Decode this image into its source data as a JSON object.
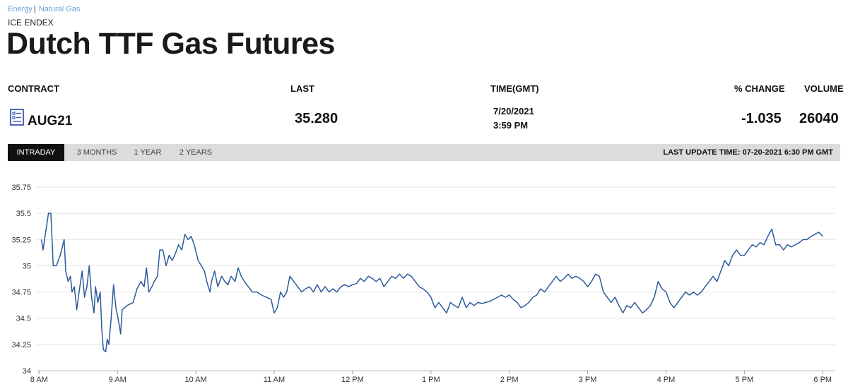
{
  "breadcrumb": {
    "item1": "Energy",
    "separator": "|",
    "item2": "Natural Gas"
  },
  "exchange": "ICE ENDEX",
  "title": "Dutch TTF Gas Futures",
  "table": {
    "headers": {
      "contract": "CONTRACT",
      "last": "LAST",
      "time": "TIME(GMT)",
      "change": "% CHANGE",
      "volume": "VOLUME"
    },
    "row": {
      "contract": "AUG21",
      "last": "35.280",
      "date": "7/20/2021",
      "time": "3:59 PM",
      "change": "-1.035",
      "volume": "26040"
    }
  },
  "tabs": [
    {
      "label": "INTRADAY",
      "active": true
    },
    {
      "label": "3 MONTHS",
      "active": false
    },
    {
      "label": "1 YEAR",
      "active": false
    },
    {
      "label": "2 YEARS",
      "active": false
    }
  ],
  "last_update": "LAST UPDATE TIME: 07-20-2021 6:30 PM GMT",
  "colors": {
    "line": "#2c5a9c",
    "link": "#6aa0d6",
    "icon": "#3a57b5",
    "tabbar": "#dcdcdc",
    "active_tab": "#111111"
  },
  "chart_data": {
    "type": "line",
    "title": "",
    "xlabel": "",
    "ylabel": "",
    "x_unit": "hours GMT",
    "xlim": [
      7.97,
      18.16
    ],
    "ylim": [
      34,
      35.75
    ],
    "yticks": [
      34,
      34.25,
      34.5,
      34.75,
      35,
      35.25,
      35.5,
      35.75
    ],
    "xticks": [
      {
        "value": 8,
        "label": "8 AM"
      },
      {
        "value": 9,
        "label": "9 AM"
      },
      {
        "value": 10,
        "label": "10 AM"
      },
      {
        "value": 11,
        "label": "11 AM"
      },
      {
        "value": 12,
        "label": "12 PM"
      },
      {
        "value": 13,
        "label": "1 PM"
      },
      {
        "value": 14,
        "label": "2 PM"
      },
      {
        "value": 15,
        "label": "3 PM"
      },
      {
        "value": 16,
        "label": "4 PM"
      },
      {
        "value": 17,
        "label": "5 PM"
      },
      {
        "value": 18,
        "label": "6 PM"
      }
    ],
    "grid": true,
    "series": [
      {
        "points": [
          [
            8.03,
            35.25
          ],
          [
            8.05,
            35.15
          ],
          [
            8.08,
            35.3
          ],
          [
            8.12,
            35.5
          ],
          [
            8.15,
            35.5
          ],
          [
            8.18,
            35.0
          ],
          [
            8.22,
            35.0
          ],
          [
            8.27,
            35.1
          ],
          [
            8.32,
            35.25
          ],
          [
            8.34,
            34.95
          ],
          [
            8.37,
            34.85
          ],
          [
            8.4,
            34.9
          ],
          [
            8.42,
            34.75
          ],
          [
            8.45,
            34.8
          ],
          [
            8.48,
            34.58
          ],
          [
            8.51,
            34.75
          ],
          [
            8.55,
            34.95
          ],
          [
            8.58,
            34.7
          ],
          [
            8.61,
            34.8
          ],
          [
            8.64,
            35.0
          ],
          [
            8.67,
            34.7
          ],
          [
            8.7,
            34.55
          ],
          [
            8.72,
            34.8
          ],
          [
            8.75,
            34.65
          ],
          [
            8.78,
            34.75
          ],
          [
            8.8,
            34.4
          ],
          [
            8.82,
            34.2
          ],
          [
            8.85,
            34.18
          ],
          [
            8.87,
            34.3
          ],
          [
            8.89,
            34.25
          ],
          [
            8.92,
            34.5
          ],
          [
            8.95,
            34.82
          ],
          [
            8.98,
            34.6
          ],
          [
            9.02,
            34.45
          ],
          [
            9.04,
            34.35
          ],
          [
            9.06,
            34.58
          ],
          [
            9.12,
            34.62
          ],
          [
            9.2,
            34.65
          ],
          [
            9.25,
            34.78
          ],
          [
            9.3,
            34.85
          ],
          [
            9.34,
            34.8
          ],
          [
            9.37,
            34.98
          ],
          [
            9.4,
            34.75
          ],
          [
            9.44,
            34.8
          ],
          [
            9.47,
            34.85
          ],
          [
            9.51,
            34.9
          ],
          [
            9.54,
            35.15
          ],
          [
            9.58,
            35.15
          ],
          [
            9.62,
            35.0
          ],
          [
            9.66,
            35.1
          ],
          [
            9.7,
            35.05
          ],
          [
            9.74,
            35.12
          ],
          [
            9.78,
            35.2
          ],
          [
            9.82,
            35.15
          ],
          [
            9.86,
            35.3
          ],
          [
            9.9,
            35.25
          ],
          [
            9.94,
            35.28
          ],
          [
            9.98,
            35.2
          ],
          [
            10.03,
            35.05
          ],
          [
            10.07,
            35.0
          ],
          [
            10.11,
            34.95
          ],
          [
            10.14,
            34.85
          ],
          [
            10.18,
            34.75
          ],
          [
            10.2,
            34.85
          ],
          [
            10.24,
            34.95
          ],
          [
            10.28,
            34.8
          ],
          [
            10.33,
            34.9
          ],
          [
            10.37,
            34.85
          ],
          [
            10.41,
            34.82
          ],
          [
            10.45,
            34.9
          ],
          [
            10.5,
            34.85
          ],
          [
            10.54,
            34.98
          ],
          [
            10.58,
            34.9
          ],
          [
            10.62,
            34.85
          ],
          [
            10.67,
            34.8
          ],
          [
            10.72,
            34.75
          ],
          [
            10.78,
            34.75
          ],
          [
            10.84,
            34.72
          ],
          [
            10.9,
            34.7
          ],
          [
            10.96,
            34.68
          ],
          [
            11.0,
            34.55
          ],
          [
            11.04,
            34.6
          ],
          [
            11.08,
            34.75
          ],
          [
            11.12,
            34.7
          ],
          [
            11.16,
            34.75
          ],
          [
            11.2,
            34.9
          ],
          [
            11.25,
            34.85
          ],
          [
            11.3,
            34.8
          ],
          [
            11.35,
            34.75
          ],
          [
            11.4,
            34.78
          ],
          [
            11.45,
            34.8
          ],
          [
            11.5,
            34.75
          ],
          [
            11.55,
            34.82
          ],
          [
            11.6,
            34.75
          ],
          [
            11.65,
            34.8
          ],
          [
            11.7,
            34.75
          ],
          [
            11.75,
            34.78
          ],
          [
            11.8,
            34.75
          ],
          [
            11.85,
            34.8
          ],
          [
            11.9,
            34.82
          ],
          [
            11.95,
            34.8
          ],
          [
            12.0,
            34.82
          ],
          [
            12.05,
            34.83
          ],
          [
            12.1,
            34.88
          ],
          [
            12.15,
            34.85
          ],
          [
            12.2,
            34.9
          ],
          [
            12.25,
            34.88
          ],
          [
            12.3,
            34.85
          ],
          [
            12.35,
            34.88
          ],
          [
            12.4,
            34.8
          ],
          [
            12.45,
            34.85
          ],
          [
            12.5,
            34.9
          ],
          [
            12.55,
            34.88
          ],
          [
            12.6,
            34.92
          ],
          [
            12.65,
            34.88
          ],
          [
            12.7,
            34.92
          ],
          [
            12.75,
            34.9
          ],
          [
            12.8,
            34.85
          ],
          [
            12.85,
            34.8
          ],
          [
            12.9,
            34.78
          ],
          [
            12.95,
            34.75
          ],
          [
            13.0,
            34.7
          ],
          [
            13.05,
            34.6
          ],
          [
            13.1,
            34.65
          ],
          [
            13.15,
            34.6
          ],
          [
            13.2,
            34.55
          ],
          [
            13.25,
            34.65
          ],
          [
            13.3,
            34.62
          ],
          [
            13.35,
            34.6
          ],
          [
            13.4,
            34.7
          ],
          [
            13.45,
            34.6
          ],
          [
            13.5,
            34.65
          ],
          [
            13.55,
            34.62
          ],
          [
            13.6,
            34.65
          ],
          [
            13.65,
            34.64
          ],
          [
            13.7,
            34.65
          ],
          [
            13.75,
            34.66
          ],
          [
            13.8,
            34.68
          ],
          [
            13.85,
            34.7
          ],
          [
            13.9,
            34.72
          ],
          [
            13.95,
            34.7
          ],
          [
            14.0,
            34.72
          ],
          [
            14.05,
            34.68
          ],
          [
            14.1,
            34.65
          ],
          [
            14.15,
            34.6
          ],
          [
            14.2,
            34.62
          ],
          [
            14.25,
            34.65
          ],
          [
            14.3,
            34.7
          ],
          [
            14.35,
            34.72
          ],
          [
            14.4,
            34.78
          ],
          [
            14.45,
            34.75
          ],
          [
            14.5,
            34.8
          ],
          [
            14.55,
            34.85
          ],
          [
            14.6,
            34.9
          ],
          [
            14.65,
            34.85
          ],
          [
            14.7,
            34.88
          ],
          [
            14.75,
            34.92
          ],
          [
            14.8,
            34.88
          ],
          [
            14.85,
            34.9
          ],
          [
            14.9,
            34.88
          ],
          [
            14.95,
            34.85
          ],
          [
            15.0,
            34.8
          ],
          [
            15.05,
            34.85
          ],
          [
            15.1,
            34.92
          ],
          [
            15.15,
            34.9
          ],
          [
            15.2,
            34.75
          ],
          [
            15.25,
            34.7
          ],
          [
            15.3,
            34.65
          ],
          [
            15.35,
            34.7
          ],
          [
            15.4,
            34.62
          ],
          [
            15.45,
            34.55
          ],
          [
            15.5,
            34.62
          ],
          [
            15.55,
            34.6
          ],
          [
            15.6,
            34.65
          ],
          [
            15.65,
            34.6
          ],
          [
            15.7,
            34.55
          ],
          [
            15.75,
            34.58
          ],
          [
            15.8,
            34.62
          ],
          [
            15.85,
            34.7
          ],
          [
            15.9,
            34.85
          ],
          [
            15.95,
            34.78
          ],
          [
            16.0,
            34.75
          ],
          [
            16.05,
            34.65
          ],
          [
            16.1,
            34.6
          ],
          [
            16.15,
            34.65
          ],
          [
            16.2,
            34.7
          ],
          [
            16.25,
            34.75
          ],
          [
            16.3,
            34.72
          ],
          [
            16.35,
            34.75
          ],
          [
            16.4,
            34.72
          ],
          [
            16.45,
            34.75
          ],
          [
            16.5,
            34.8
          ],
          [
            16.55,
            34.85
          ],
          [
            16.6,
            34.9
          ],
          [
            16.65,
            34.85
          ],
          [
            16.7,
            34.95
          ],
          [
            16.75,
            35.05
          ],
          [
            16.8,
            35.0
          ],
          [
            16.85,
            35.1
          ],
          [
            16.9,
            35.15
          ],
          [
            16.95,
            35.1
          ],
          [
            17.0,
            35.1
          ],
          [
            17.05,
            35.15
          ],
          [
            17.1,
            35.2
          ],
          [
            17.15,
            35.18
          ],
          [
            17.2,
            35.22
          ],
          [
            17.25,
            35.2
          ],
          [
            17.3,
            35.28
          ],
          [
            17.35,
            35.35
          ],
          [
            17.4,
            35.2
          ],
          [
            17.45,
            35.2
          ],
          [
            17.5,
            35.15
          ],
          [
            17.55,
            35.2
          ],
          [
            17.6,
            35.18
          ],
          [
            17.65,
            35.2
          ],
          [
            17.7,
            35.22
          ],
          [
            17.75,
            35.25
          ],
          [
            17.8,
            35.25
          ],
          [
            17.85,
            35.28
          ],
          [
            17.9,
            35.3
          ],
          [
            17.95,
            35.32
          ],
          [
            18.0,
            35.28
          ]
        ]
      }
    ]
  }
}
